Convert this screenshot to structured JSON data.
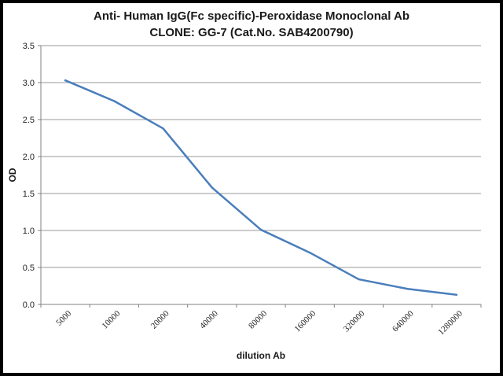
{
  "chart_data": {
    "type": "line",
    "title": "Anti- Human IgG(Fc specific)-Peroxidase Monoclonal Ab",
    "subtitle": "CLONE: GG-7 (Cat.No. SAB4200790)",
    "xlabel": "dilution Ab",
    "ylabel": "OD",
    "categories": [
      "5000",
      "10000",
      "20000",
      "40000",
      "80000",
      "160000",
      "320000",
      "640000",
      "1280000"
    ],
    "series": [
      {
        "values": [
          3.03,
          2.75,
          2.38,
          1.58,
          1.01,
          0.7,
          0.34,
          0.21,
          0.13
        ]
      }
    ],
    "ylim": [
      0,
      3.5
    ],
    "yticks": [
      "0.0",
      "0.5",
      "1.0",
      "1.5",
      "2.0",
      "2.5",
      "3.0",
      "3.5"
    ],
    "grid": true,
    "line_color": "#4a7ebb",
    "grid_color": "#9a9a9a"
  }
}
